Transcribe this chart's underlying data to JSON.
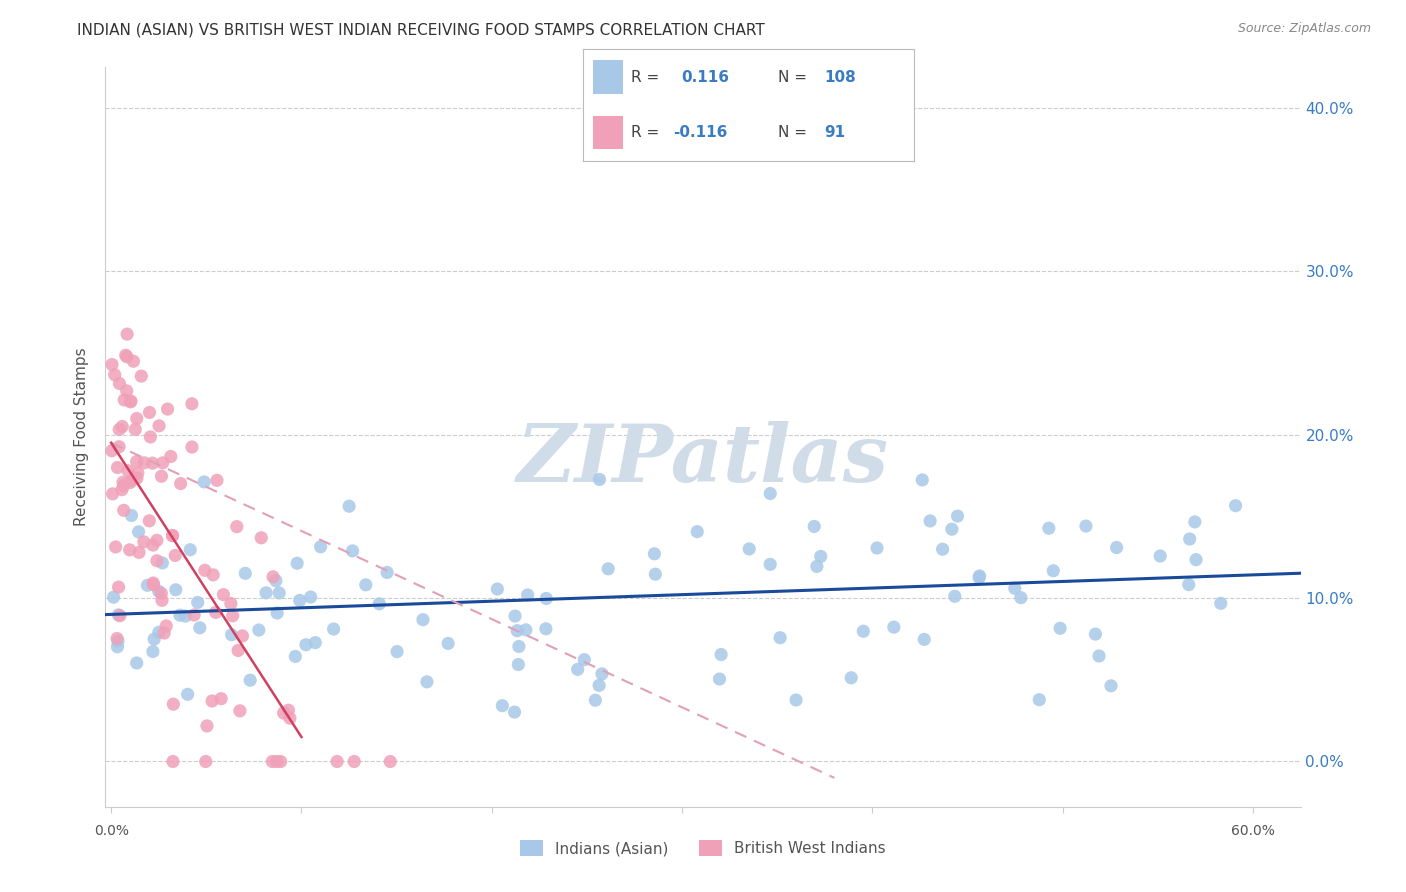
{
  "title": "INDIAN (ASIAN) VS BRITISH WEST INDIAN RECEIVING FOOD STAMPS CORRELATION CHART",
  "source": "Source: ZipAtlas.com",
  "ylabel": "Receiving Food Stamps",
  "legend_label1": "Indians (Asian)",
  "legend_label2": "British West Indians",
  "r1": 0.116,
  "n1": 108,
  "r2": -0.116,
  "n2": 91,
  "color_blue": "#a8c8e8",
  "color_pink": "#f0a0b8",
  "color_blue_dark": "#3a7cc4",
  "trendline_blue": "#1a4a9a",
  "trendline_pink_solid": "#d04060",
  "trendline_pink_dash": "#e0a0b8",
  "watermark_color": "#d0dce8",
  "x_min": -0.003,
  "x_max": 0.625,
  "y_min": -0.028,
  "y_max": 0.425,
  "y_ticks": [
    0.0,
    0.1,
    0.2,
    0.3,
    0.4
  ],
  "x_ticks": [
    0.0,
    0.1,
    0.2,
    0.3,
    0.4,
    0.5,
    0.6
  ],
  "grid_color": "#cccccc",
  "background": "#ffffff",
  "title_color": "#333333",
  "source_color": "#888888",
  "label_color": "#555555",
  "right_tick_color": "#3a7cc4"
}
